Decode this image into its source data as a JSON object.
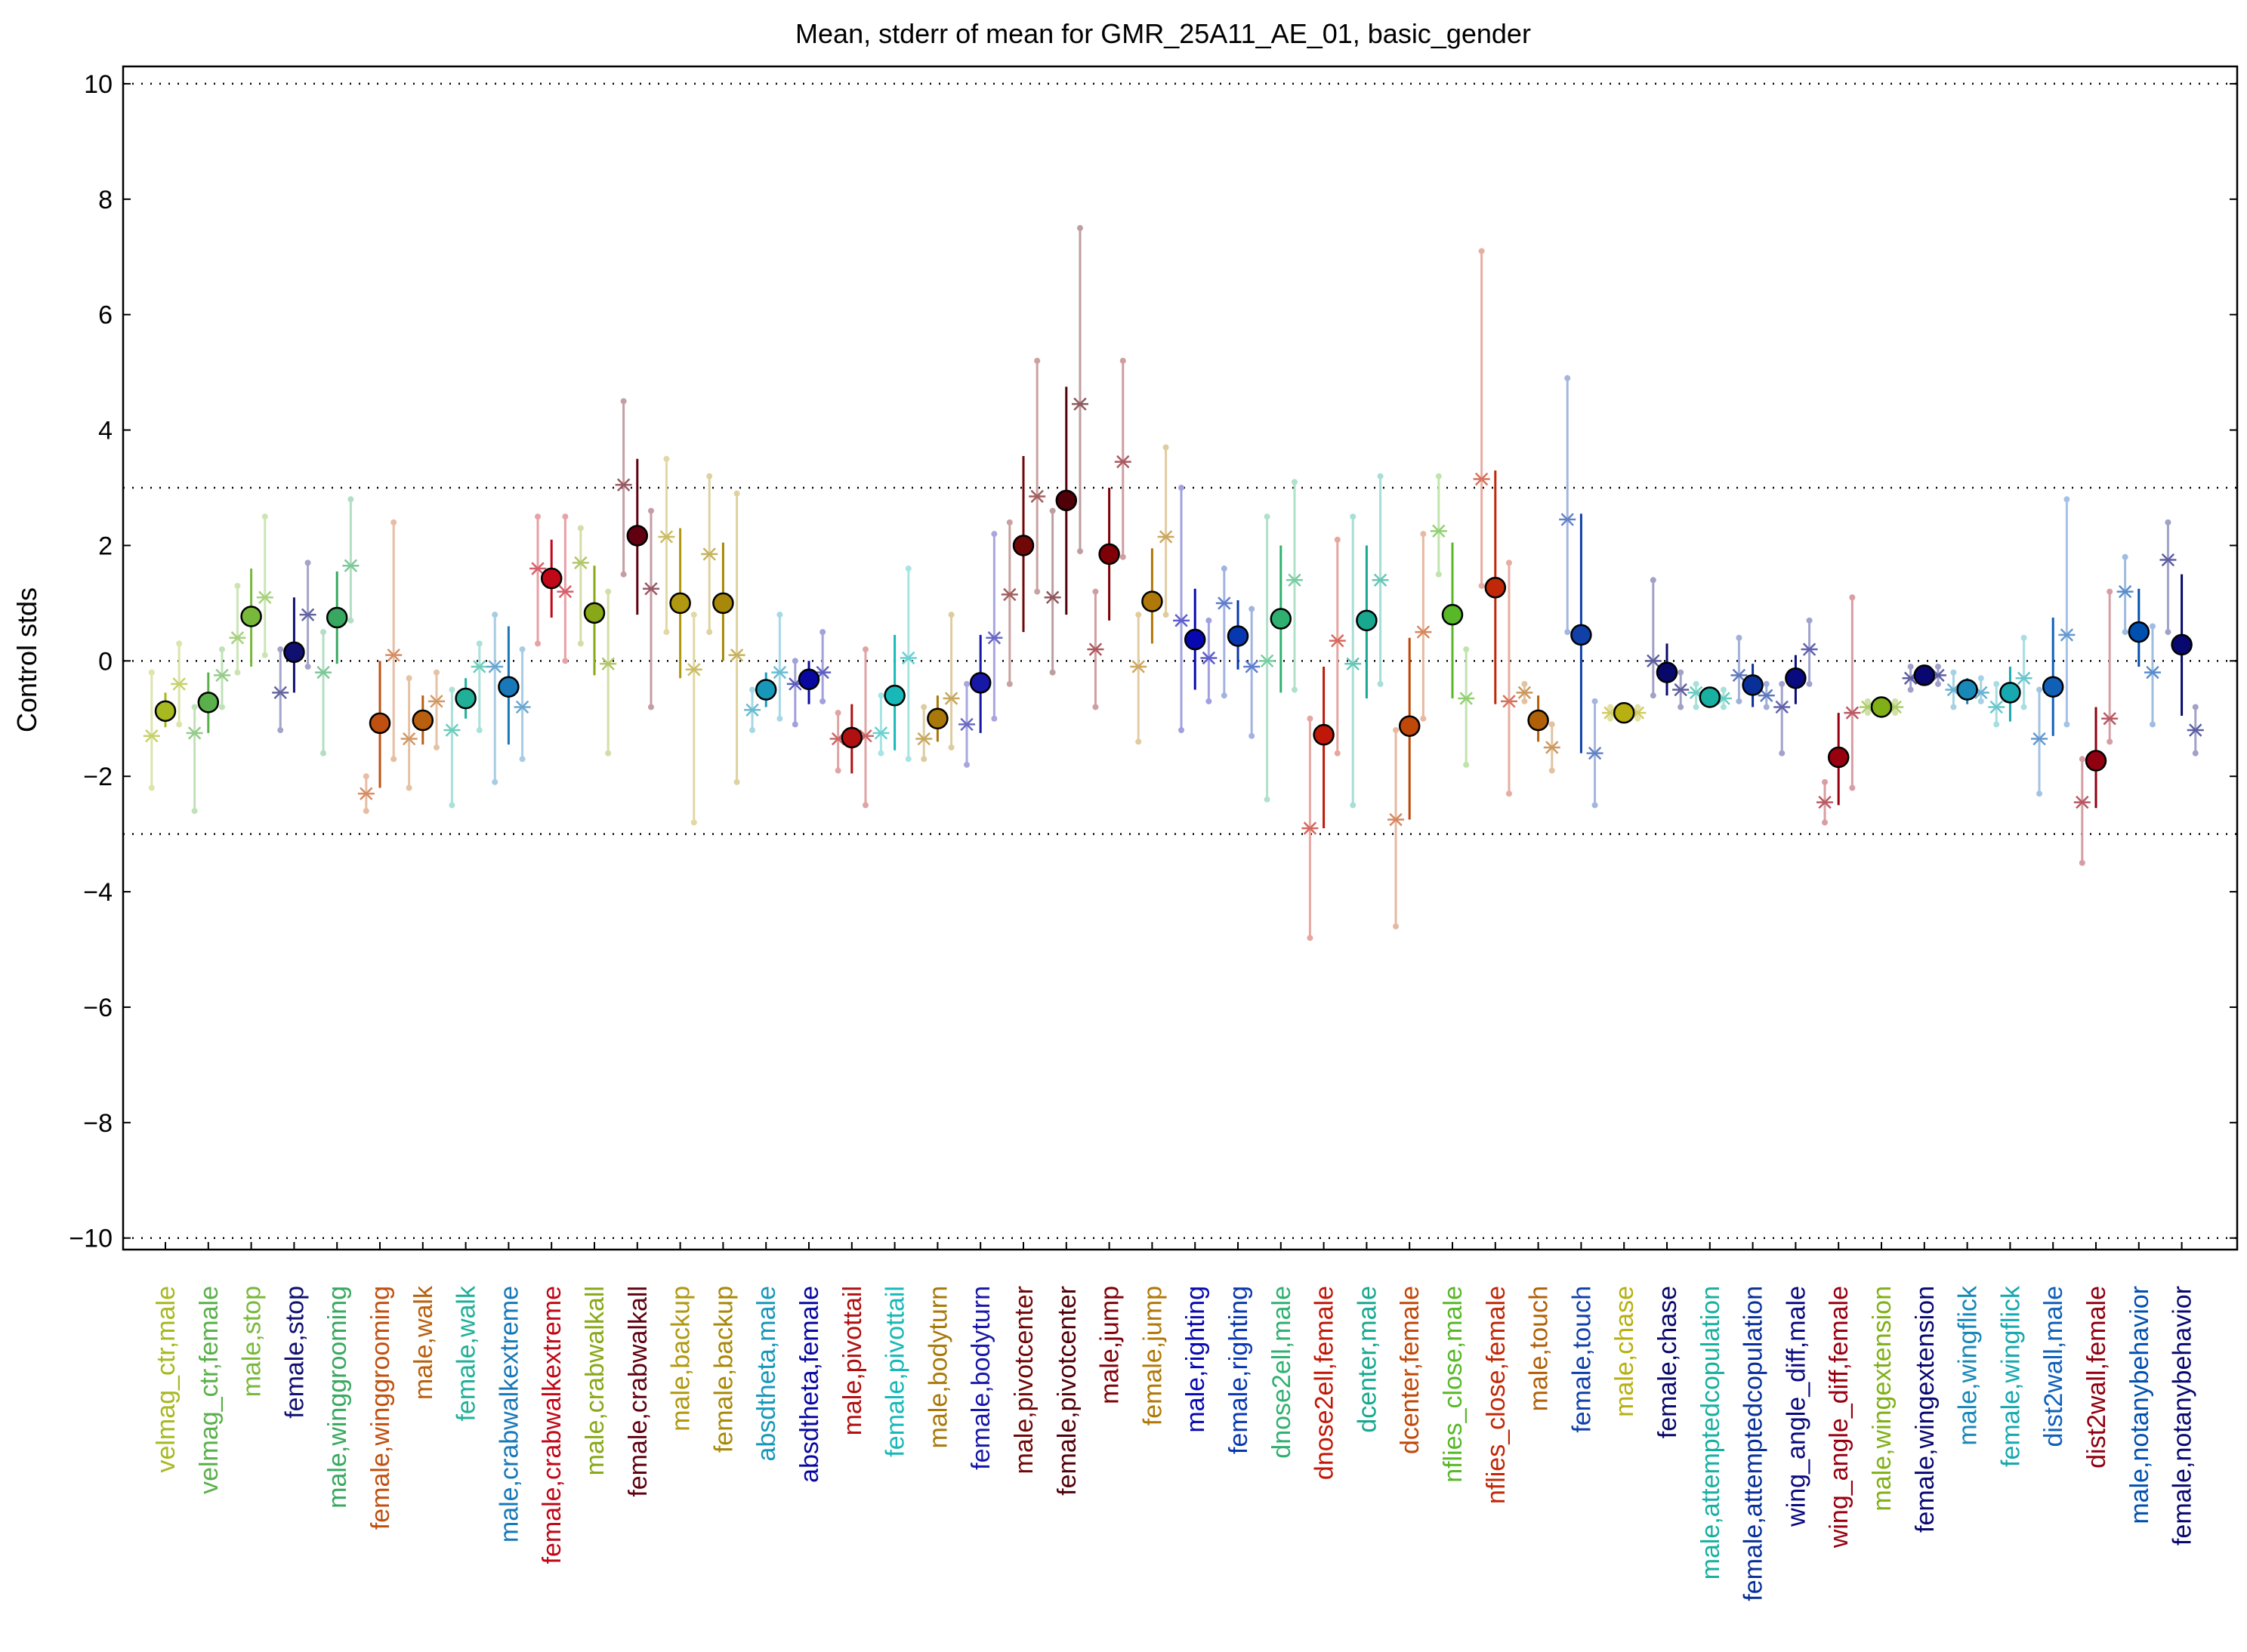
{
  "chart_data": {
    "type": "scatter",
    "title": "Mean, stderr of mean for GMR_25A11_AE_01, basic_gender",
    "xlabel": "",
    "ylabel": "Control stds",
    "ylim": [
      -10.2,
      10.3
    ],
    "yticks": [
      -10,
      -8,
      -6,
      -4,
      -2,
      0,
      2,
      4,
      6,
      8,
      10
    ],
    "ytick_labels": [
      "−10",
      "−8",
      "−6",
      "−4",
      "−2",
      "0",
      "2",
      "4",
      "6",
      "8",
      "10"
    ],
    "reference_lines": [
      -10,
      -3,
      0,
      3,
      10
    ],
    "grid": false,
    "legend": "none",
    "series": [
      {
        "name": "mean"
      },
      {
        "name": "stderr of mean"
      }
    ],
    "categories": [
      "velmag_ctr,male",
      "velmag_ctr,female",
      "male,stop",
      "female,stop",
      "male,winggrooming",
      "female,winggrooming",
      "male,walk",
      "female,walk",
      "male,crabwalkextreme",
      "female,crabwalkextreme",
      "male,crabwalkall",
      "female,crabwalkall",
      "male,backup",
      "female,backup",
      "absdtheta,male",
      "absdtheta,female",
      "male,pivottail",
      "female,pivottail",
      "male,bodyturn",
      "female,bodyturn",
      "male,pivotcenter",
      "female,pivotcenter",
      "male,jump",
      "female,jump",
      "male,righting",
      "female,righting",
      "dnose2ell,male",
      "dnose2ell,female",
      "dcenter,male",
      "dcenter,female",
      "nflies_close,male",
      "nflies_close,female",
      "male,touch",
      "female,touch",
      "male,chase",
      "female,chase",
      "male,attemptedcopulation",
      "female,attemptedcopulation",
      "wing_angle_diff,male",
      "wing_angle_diff,female",
      "male,wingextension",
      "female,wingextension",
      "male,wingflick",
      "female,wingflick",
      "dist2wall,male",
      "dist2wall,female",
      "male,notanybehavior",
      "female,notanybehavior"
    ],
    "colors": [
      "#a8b820",
      "#5ab04a",
      "#78b83a",
      "#101070",
      "#38a860",
      "#c05010",
      "#b86010",
      "#20b098",
      "#1878b8",
      "#c00818",
      "#88a818",
      "#600010",
      "#b09810",
      "#a88808",
      "#1898b8",
      "#0808a0",
      "#b01010",
      "#18b8b8",
      "#a87808",
      "#1818a8",
      "#700808",
      "#500008",
      "#800008",
      "#b07808",
      "#0808b0",
      "#0838b0",
      "#30b070",
      "#c01808",
      "#18a890",
      "#c04808",
      "#58b828",
      "#c02808",
      "#b06008",
      "#1040a8",
      "#b8b010",
      "#080868",
      "#18b0a0",
      "#083098",
      "#0a0a80",
      "#980010",
      "#80b018",
      "#080870",
      "#1888b8",
      "#18a8b0",
      "#1060b8",
      "#900010",
      "#0050b0",
      "#080870"
    ],
    "means": [
      -0.87,
      -0.72,
      0.77,
      0.15,
      0.75,
      -1.08,
      -1.03,
      -0.65,
      -0.45,
      1.43,
      0.83,
      2.17,
      1.0,
      1.0,
      -0.5,
      -0.32,
      -1.33,
      -0.6,
      -1.0,
      -0.38,
      2.0,
      2.78,
      1.85,
      1.03,
      0.37,
      0.43,
      0.73,
      -1.28,
      0.7,
      -1.13,
      0.8,
      1.27,
      -1.03,
      0.45,
      -0.9,
      -0.2,
      -0.63,
      -0.42,
      -0.3,
      -1.67,
      -0.8,
      -0.25,
      -0.5,
      -0.55,
      -0.45,
      -1.73,
      0.5,
      0.28
    ],
    "stderr_low": [
      -1.15,
      -1.25,
      -0.1,
      -0.55,
      -0.05,
      -2.2,
      -1.45,
      -1.0,
      -1.45,
      0.75,
      -0.25,
      0.8,
      -0.3,
      0.0,
      -0.8,
      -0.75,
      -1.95,
      -1.55,
      -1.4,
      -1.25,
      0.5,
      0.8,
      0.7,
      0.3,
      -0.5,
      -0.15,
      -0.55,
      -2.9,
      -0.65,
      -2.75,
      -0.65,
      -0.75,
      -1.4,
      -1.6,
      -1.0,
      -0.6,
      -0.8,
      -0.8,
      -0.75,
      -2.5,
      -0.95,
      -0.4,
      -0.75,
      -1.05,
      -1.3,
      -2.55,
      -0.1,
      -0.95
    ],
    "stderr_high": [
      -0.55,
      -0.2,
      1.6,
      1.1,
      1.55,
      0.0,
      -0.6,
      -0.3,
      0.6,
      2.1,
      1.65,
      3.5,
      2.3,
      2.05,
      -0.2,
      0.0,
      -0.75,
      0.45,
      -0.6,
      0.45,
      3.55,
      4.75,
      3.0,
      1.95,
      1.25,
      1.05,
      2.0,
      -0.1,
      2.0,
      0.4,
      2.05,
      3.3,
      -0.6,
      2.55,
      -0.8,
      0.3,
      -0.45,
      -0.05,
      0.1,
      -0.9,
      -0.65,
      -0.1,
      -0.3,
      -0.1,
      0.75,
      -0.8,
      1.25,
      1.5
    ],
    "sample_offsets": [
      -0.32,
      0.32
    ],
    "sample_values": [
      [
        -1.3,
        -0.4
      ],
      [
        -1.25,
        -0.25
      ],
      [
        0.4,
        1.1
      ],
      [
        -0.55,
        0.8
      ],
      [
        -0.2,
        1.65
      ],
      [
        -2.3,
        0.1
      ],
      [
        -1.35,
        -0.7
      ],
      [
        -1.2,
        -0.1
      ],
      [
        -0.1,
        -0.8
      ],
      [
        1.6,
        1.2
      ],
      [
        1.7,
        -0.05
      ],
      [
        3.05,
        1.25
      ],
      [
        2.15,
        -0.15
      ],
      [
        1.85,
        0.1
      ],
      [
        -0.85,
        -0.2
      ],
      [
        -0.4,
        -0.2
      ],
      [
        -1.35,
        -1.3
      ],
      [
        -1.25,
        0.05
      ],
      [
        -1.35,
        -0.65
      ],
      [
        -1.1,
        0.4
      ],
      [
        1.15,
        2.85
      ],
      [
        1.1,
        4.45
      ],
      [
        0.2,
        3.45
      ],
      [
        -0.1,
        2.15
      ],
      [
        0.7,
        0.05
      ],
      [
        1.0,
        -0.1
      ],
      [
        0.0,
        1.4
      ],
      [
        -2.9,
        0.35
      ],
      [
        -0.05,
        1.4
      ],
      [
        -2.75,
        0.5
      ],
      [
        2.25,
        -0.65
      ],
      [
        3.15,
        -0.7
      ],
      [
        -0.55,
        -1.5
      ],
      [
        2.45,
        -1.6
      ],
      [
        -0.9,
        -0.9
      ],
      [
        0.0,
        -0.5
      ],
      [
        -0.55,
        -0.65
      ],
      [
        -0.25,
        -0.6
      ],
      [
        -0.8,
        0.2
      ],
      [
        -2.45,
        -0.9
      ],
      [
        -0.8,
        -0.8
      ],
      [
        -0.3,
        -0.25
      ],
      [
        -0.5,
        -0.55
      ],
      [
        -0.8,
        -0.3
      ],
      [
        -1.35,
        0.45
      ],
      [
        -2.45,
        -1.0
      ],
      [
        1.2,
        -0.2
      ],
      [
        1.75,
        -1.2
      ]
    ],
    "spread_ranges": [
      [
        [
          -2.2,
          -0.2
        ],
        [
          -1.1,
          0.3
        ]
      ],
      [
        [
          -2.6,
          -0.8
        ],
        [
          -0.8,
          0.2
        ]
      ],
      [
        [
          -0.2,
          1.3
        ],
        [
          0.1,
          2.5
        ]
      ],
      [
        [
          -1.2,
          0.2
        ],
        [
          -0.1,
          1.7
        ]
      ],
      [
        [
          -1.6,
          0.5
        ],
        [
          0.7,
          2.8
        ]
      ],
      [
        [
          -2.6,
          -2.0
        ],
        [
          -1.7,
          2.4
        ]
      ],
      [
        [
          -2.2,
          -0.3
        ],
        [
          -1.5,
          -0.2
        ]
      ],
      [
        [
          -2.5,
          -0.5
        ],
        [
          -1.2,
          0.3
        ]
      ],
      [
        [
          -2.1,
          0.8
        ],
        [
          -1.7,
          0.2
        ]
      ],
      [
        [
          0.3,
          2.5
        ],
        [
          0.0,
          2.5
        ]
      ],
      [
        [
          0.3,
          2.3
        ],
        [
          -1.6,
          1.2
        ]
      ],
      [
        [
          1.5,
          4.5
        ],
        [
          -0.8,
          2.6
        ]
      ],
      [
        [
          0.5,
          3.5
        ],
        [
          -2.8,
          0.8
        ]
      ],
      [
        [
          0.5,
          3.2
        ],
        [
          -2.1,
          2.9
        ]
      ],
      [
        [
          -1.2,
          -0.5
        ],
        [
          -1.0,
          0.8
        ]
      ],
      [
        [
          -1.1,
          0.0
        ],
        [
          -0.7,
          0.5
        ]
      ],
      [
        [
          -1.9,
          -0.9
        ],
        [
          -2.5,
          0.2
        ]
      ],
      [
        [
          -1.6,
          -0.6
        ],
        [
          -1.7,
          1.6
        ]
      ],
      [
        [
          -1.7,
          -0.8
        ],
        [
          -1.5,
          0.8
        ]
      ],
      [
        [
          -1.8,
          -0.4
        ],
        [
          -1.0,
          2.2
        ]
      ],
      [
        [
          -0.4,
          2.4
        ],
        [
          1.2,
          5.2
        ]
      ],
      [
        [
          -0.2,
          2.6
        ],
        [
          1.9,
          7.5
        ]
      ],
      [
        [
          -0.8,
          1.2
        ],
        [
          1.8,
          5.2
        ]
      ],
      [
        [
          -1.4,
          0.8
        ],
        [
          0.8,
          3.7
        ]
      ],
      [
        [
          -1.2,
          3.0
        ],
        [
          -0.7,
          0.7
        ]
      ],
      [
        [
          -0.6,
          1.6
        ],
        [
          -1.3,
          0.9
        ]
      ],
      [
        [
          -2.4,
          2.5
        ],
        [
          -0.5,
          3.1
        ]
      ],
      [
        [
          -4.8,
          -1.0
        ],
        [
          -1.6,
          2.1
        ]
      ],
      [
        [
          -2.5,
          2.5
        ],
        [
          -0.4,
          3.2
        ]
      ],
      [
        [
          -4.6,
          -1.2
        ],
        [
          -1.0,
          2.2
        ]
      ],
      [
        [
          1.5,
          3.2
        ],
        [
          -1.8,
          0.2
        ]
      ],
      [
        [
          1.3,
          7.1
        ],
        [
          -2.3,
          1.7
        ]
      ],
      [
        [
          -0.7,
          -0.4
        ],
        [
          -1.9,
          -1.1
        ]
      ],
      [
        [
          0.5,
          4.9
        ],
        [
          -2.5,
          -0.7
        ]
      ],
      [
        [
          -1.0,
          -0.8
        ],
        [
          -1.0,
          -0.8
        ]
      ],
      [
        [
          -0.6,
          1.4
        ],
        [
          -0.8,
          -0.2
        ]
      ],
      [
        [
          -0.8,
          -0.4
        ],
        [
          -0.8,
          -0.5
        ]
      ],
      [
        [
          -0.7,
          0.4
        ],
        [
          -0.8,
          -0.4
        ]
      ],
      [
        [
          -1.6,
          -0.4
        ],
        [
          -0.4,
          0.7
        ]
      ],
      [
        [
          -2.8,
          -2.1
        ],
        [
          -2.2,
          1.1
        ]
      ],
      [
        [
          -0.9,
          -0.7
        ],
        [
          -0.9,
          -0.7
        ]
      ],
      [
        [
          -0.5,
          -0.1
        ],
        [
          -0.4,
          -0.1
        ]
      ],
      [
        [
          -0.8,
          -0.2
        ],
        [
          -0.7,
          -0.3
        ]
      ],
      [
        [
          -1.1,
          -0.4
        ],
        [
          -0.8,
          0.4
        ]
      ],
      [
        [
          -2.3,
          -0.5
        ],
        [
          -1.1,
          2.8
        ]
      ],
      [
        [
          -3.5,
          -1.7
        ],
        [
          -1.4,
          1.2
        ]
      ],
      [
        [
          0.5,
          1.8
        ],
        [
          -1.1,
          0.6
        ]
      ],
      [
        [
          0.5,
          2.4
        ],
        [
          -1.6,
          -0.8
        ]
      ]
    ]
  }
}
